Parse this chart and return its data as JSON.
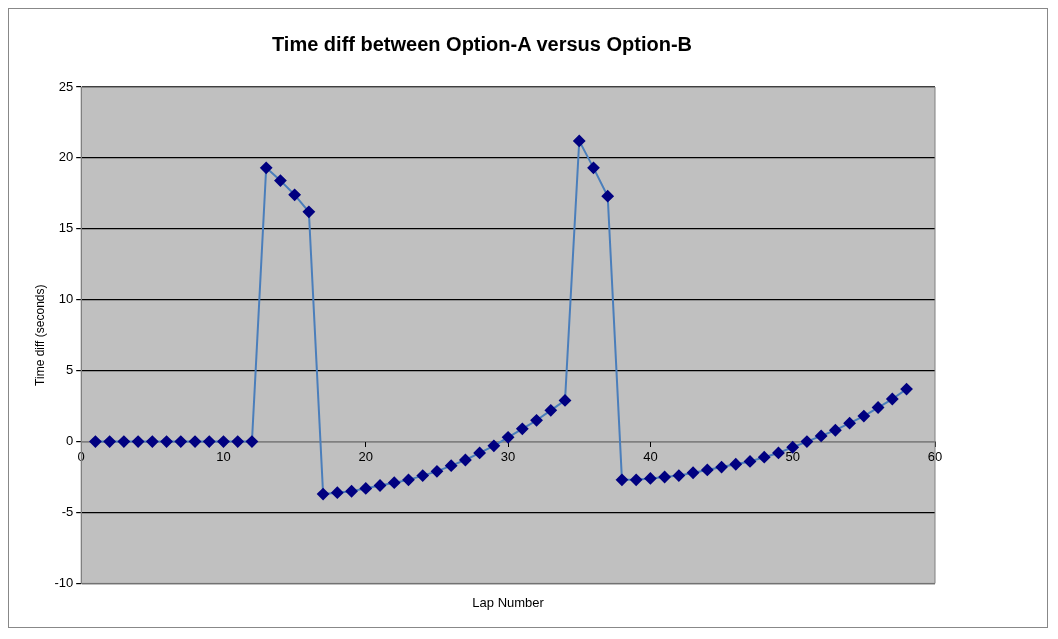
{
  "chart_data": {
    "type": "line",
    "title": "Time diff between Option-A versus Option-B",
    "xlabel": "Lap Number",
    "ylabel": "Time diff (seconds)",
    "xlim": [
      0,
      60
    ],
    "xticks": [
      0,
      10,
      20,
      30,
      40,
      50,
      60
    ],
    "ylim": [
      -10,
      25
    ],
    "yticks": [
      -10,
      -5,
      0,
      5,
      10,
      15,
      20,
      25
    ],
    "grid": "y",
    "legend": false,
    "marker": "diamond",
    "line_style": "solid",
    "x": [
      1,
      2,
      3,
      4,
      5,
      6,
      7,
      8,
      9,
      10,
      11,
      12,
      13,
      14,
      15,
      16,
      17,
      18,
      19,
      20,
      21,
      22,
      23,
      24,
      25,
      26,
      27,
      28,
      29,
      30,
      31,
      32,
      33,
      34,
      35,
      36,
      37,
      38,
      39,
      40,
      41,
      42,
      43,
      44,
      45,
      46,
      47,
      48,
      49,
      50,
      51,
      52,
      53,
      54,
      55,
      56,
      57,
      58
    ],
    "series": [
      {
        "color": "#4a7ebb",
        "colors": [
          "#000080",
          "#000080",
          "#000080",
          "#000080",
          "#000080",
          "#000080",
          "#000080",
          "#000080",
          "#000080",
          "#000080",
          "#000080",
          "#000080",
          "#000080",
          "#000080",
          "#000080",
          "#000080",
          "#000080",
          "#000080",
          "#000080",
          "#000080",
          "#000080",
          "#000080",
          "#000080",
          "#000080",
          "#000080",
          "#000080",
          "#000080",
          "#000080",
          "#000080",
          "#000080",
          "#000080",
          "#000080",
          "#000080",
          "#000080",
          "#000080",
          "#000080",
          "#000080",
          "#000080",
          "#000080",
          "#000080",
          "#000080",
          "#000080",
          "#000080",
          "#000080",
          "#000080",
          "#000080",
          "#000080",
          "#000080",
          "#000080",
          "#000080",
          "#000080",
          "#000080",
          "#000080",
          "#000080",
          "#000080",
          "#000080",
          "#000080",
          "#000080"
        ],
        "values": [
          0,
          0,
          0,
          0,
          0,
          0,
          0,
          0,
          0,
          0,
          0,
          0,
          19.3,
          18.4,
          17.4,
          16.2,
          -3.7,
          -3.6,
          -3.5,
          -3.3,
          -3.1,
          -2.9,
          -2.7,
          -2.4,
          -2.1,
          -1.7,
          -1.3,
          -0.8,
          -0.3,
          0.3,
          0.9,
          1.5,
          2.2,
          2.9,
          21.2,
          19.3,
          17.3,
          -2.7,
          -2.7,
          -2.6,
          -2.5,
          -2.4,
          -2.2,
          -2.0,
          -1.8,
          -1.6,
          -1.4,
          -1.1,
          -0.8,
          -0.4,
          0,
          0.4,
          0.8,
          1.3,
          1.8,
          2.4,
          3.0,
          3.7
        ]
      }
    ]
  }
}
